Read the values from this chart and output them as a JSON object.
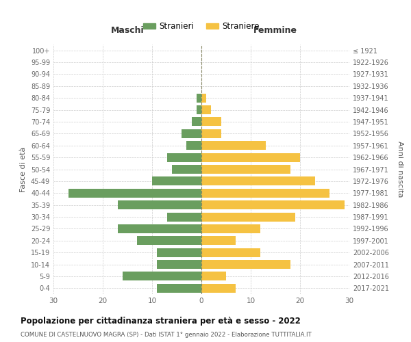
{
  "age_groups": [
    "0-4",
    "5-9",
    "10-14",
    "15-19",
    "20-24",
    "25-29",
    "30-34",
    "35-39",
    "40-44",
    "45-49",
    "50-54",
    "55-59",
    "60-64",
    "65-69",
    "70-74",
    "75-79",
    "80-84",
    "85-89",
    "90-94",
    "95-99",
    "100+"
  ],
  "birth_years": [
    "2017-2021",
    "2012-2016",
    "2007-2011",
    "2002-2006",
    "1997-2001",
    "1992-1996",
    "1987-1991",
    "1982-1986",
    "1977-1981",
    "1972-1976",
    "1967-1971",
    "1962-1966",
    "1957-1961",
    "1952-1956",
    "1947-1951",
    "1942-1946",
    "1937-1941",
    "1932-1936",
    "1927-1931",
    "1922-1926",
    "≤ 1921"
  ],
  "males": [
    9,
    16,
    9,
    9,
    13,
    17,
    7,
    17,
    27,
    10,
    6,
    7,
    3,
    4,
    2,
    1,
    1,
    0,
    0,
    0,
    0
  ],
  "females": [
    7,
    5,
    18,
    12,
    7,
    12,
    19,
    29,
    26,
    23,
    18,
    20,
    13,
    4,
    4,
    2,
    1,
    0,
    0,
    0,
    0
  ],
  "male_color": "#6a9e5f",
  "female_color": "#f5c242",
  "title": "Popolazione per cittadinanza straniera per età e sesso - 2022",
  "subtitle": "COMUNE DI CASTELNUOVO MAGRA (SP) - Dati ISTAT 1° gennaio 2022 - Elaborazione TUTTITALIA.IT",
  "left_label": "Maschi",
  "right_label": "Femmine",
  "ylabel_left": "Fasce di età",
  "ylabel_right": "Anni di nascita",
  "legend_male": "Stranieri",
  "legend_female": "Straniere",
  "xlim": 30,
  "background_color": "#ffffff",
  "grid_color": "#cccccc"
}
